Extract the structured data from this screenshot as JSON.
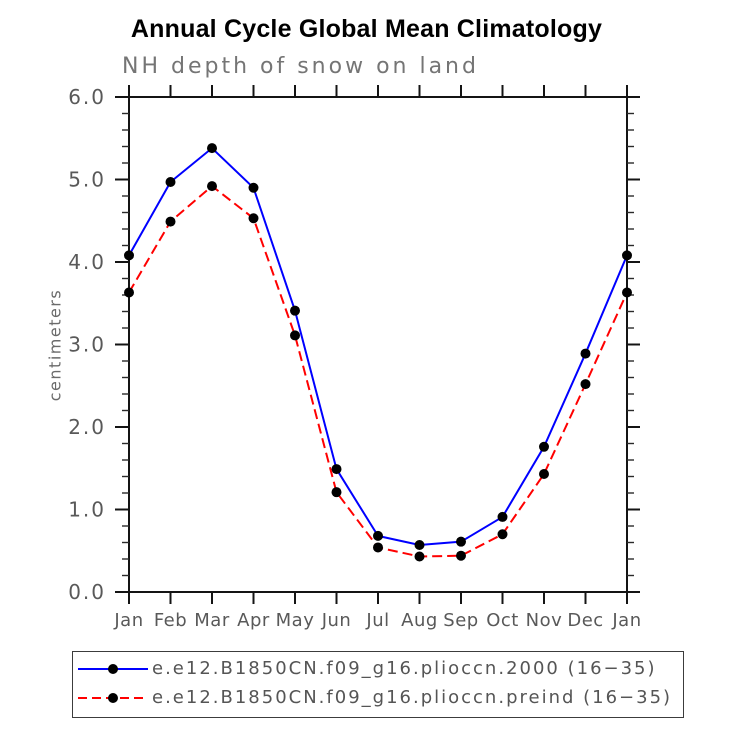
{
  "chart_data": {
    "type": "line",
    "title": "Annual Cycle Global Mean Climatology",
    "subtitle": "NH depth of snow on land",
    "xlabel": "",
    "ylabel": "centimeters",
    "categories": [
      "Jan",
      "Feb",
      "Mar",
      "Apr",
      "May",
      "Jun",
      "Jul",
      "Aug",
      "Sep",
      "Oct",
      "Nov",
      "Dec",
      "Jan"
    ],
    "ylim": [
      0.0,
      6.0
    ],
    "ytick_interval": 1.0,
    "yminor_interval": 0.2,
    "ytick_labels": [
      "0.0",
      "1.0",
      "2.0",
      "3.0",
      "4.0",
      "5.0",
      "6.0"
    ],
    "grid": false,
    "legend_position": "bottom-boxed",
    "series": [
      {
        "name": "e.e12.B1850CN.f09_g16.plioccn.2000 (16−35)",
        "color": "#0000ff",
        "line_style": "solid",
        "marker": "circle",
        "marker_color": "#000000",
        "values": [
          4.08,
          4.97,
          5.38,
          4.9,
          3.41,
          1.49,
          0.68,
          0.57,
          0.61,
          0.91,
          1.76,
          2.89,
          4.08
        ]
      },
      {
        "name": "e.e12.B1850CN.f09_g16.plioccn.preind (16−35)",
        "color": "#ff0000",
        "line_style": "dashed",
        "marker": "circle",
        "marker_color": "#000000",
        "values": [
          3.63,
          4.49,
          4.92,
          4.53,
          3.11,
          1.21,
          0.54,
          0.43,
          0.44,
          0.7,
          1.43,
          2.52,
          3.63
        ]
      }
    ]
  },
  "colors": {
    "frame": "#141414",
    "minor_tick": "#2a2a2a",
    "axis_text": "#595959",
    "subtitle_text": "#757575",
    "title_text": "#000000",
    "legend_border": "#3c3c3c"
  }
}
